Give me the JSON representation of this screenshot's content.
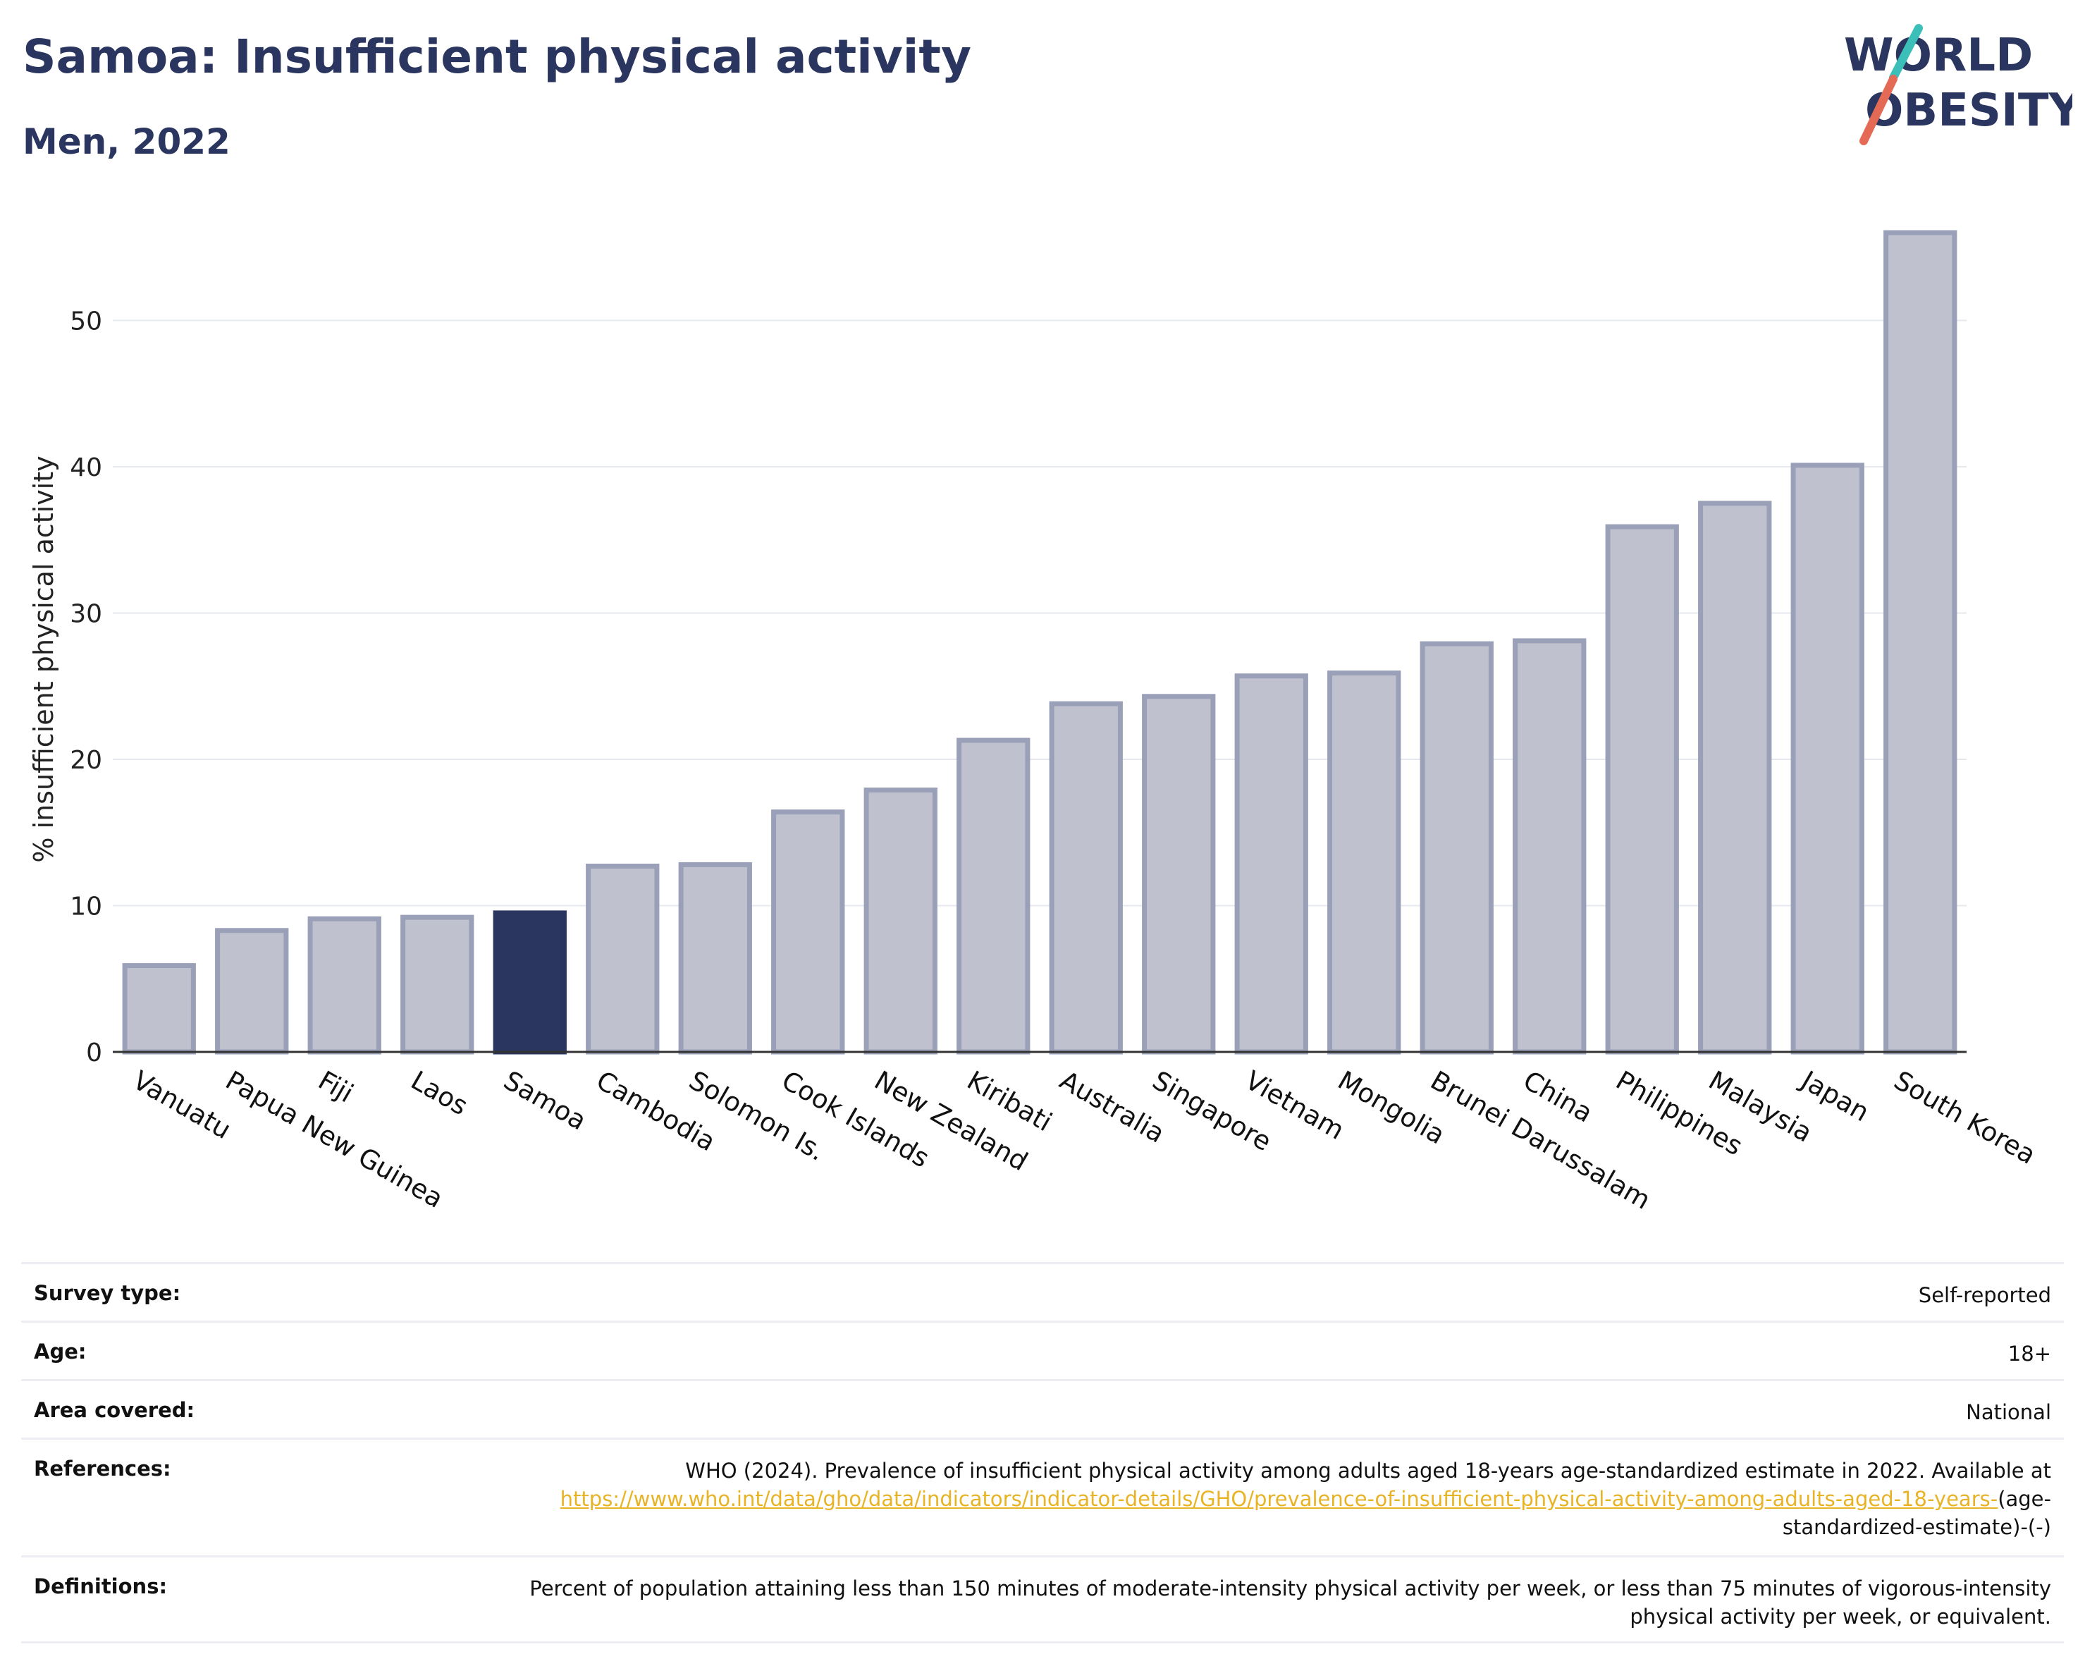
{
  "header": {
    "title": "Samoa: Insufficient physical activity",
    "subtitle": "Men, 2022",
    "logo_line1": "WORLD",
    "logo_line2": "OBESITY"
  },
  "chart_data": {
    "type": "bar",
    "ylabel": "% insufficient physical activity",
    "ylim": [
      0,
      58
    ],
    "yticks": [
      0,
      10,
      20,
      30,
      40,
      50
    ],
    "grid": true,
    "highlight": "Samoa",
    "bar_color": "#bfc2ce",
    "bar_edge_color": "#9aa0b8",
    "highlight_color": "#2a3660",
    "categories": [
      "Vanuatu",
      "Papua New Guinea",
      "Fiji",
      "Laos",
      "Samoa",
      "Cambodia",
      "Solomon Is.",
      "Cook Islands",
      "New Zealand",
      "Kiribati",
      "Australia",
      "Singapore",
      "Vietnam",
      "Mongolia",
      "Brunei Darussalam",
      "China",
      "Philippines",
      "Malaysia",
      "Japan",
      "South Korea"
    ],
    "values": [
      5.9,
      8.3,
      9.1,
      9.2,
      9.5,
      12.7,
      12.8,
      16.4,
      17.9,
      21.3,
      23.8,
      24.3,
      25.7,
      25.9,
      27.9,
      28.1,
      35.9,
      37.5,
      40.1,
      56.0
    ]
  },
  "info": {
    "survey_type_label": "Survey type:",
    "survey_type_value": "Self-reported",
    "age_label": "Age:",
    "age_value": "18+",
    "area_label": "Area covered:",
    "area_value": "National",
    "references_label": "References:",
    "references_text": "WHO (2024). Prevalence of insufficient physical activity among adults aged 18-years age-standardized estimate in 2022. Available at",
    "references_link": "https://www.who.int/data/gho/data/indicators/indicator-details/GHO/prevalence-of-insufficient-physical-activity-among-adults-aged-18-years-",
    "references_suffix": "(age-standardized-estimate)-(-)",
    "definitions_label": "Definitions:",
    "definitions_text": "Percent of population attaining less than 150 minutes of moderate-intensity physical activity per week, or less than 75 minutes of vigorous-intensity physical activity per week, or equivalent."
  }
}
